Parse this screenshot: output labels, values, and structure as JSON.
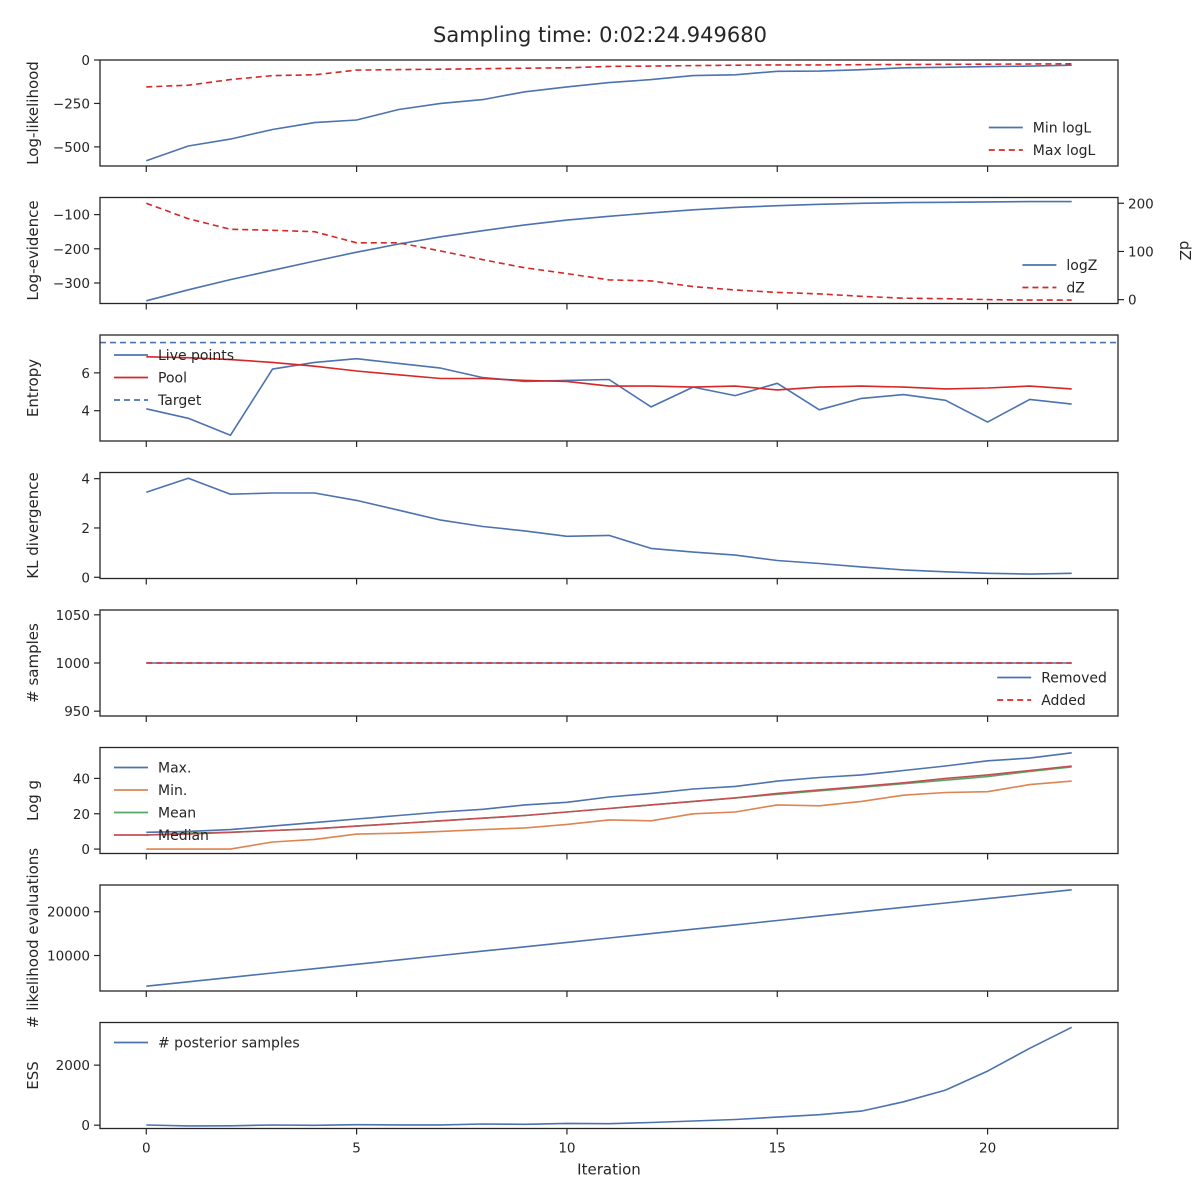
{
  "title": "Sampling time: 0:02:24.949680",
  "colors": {
    "blue": "#4c72b0",
    "red": "#d62728",
    "orange": "#dd8452",
    "green": "#55a868",
    "brick": "#c44e52",
    "axis": "#262626"
  },
  "chart_data": [
    {
      "type": "line",
      "ylabel": "Log-likelihood",
      "xlim": [
        -1.1,
        23.1
      ],
      "ylim": [
        -610,
        0
      ],
      "yticks": [
        {
          "v": 0,
          "label": "0"
        },
        {
          "v": -250,
          "label": "−250"
        },
        {
          "v": -500,
          "label": "−500"
        }
      ],
      "legend": "right",
      "series": [
        {
          "name": "Min logL",
          "color": "blue",
          "dash": false,
          "x": [
            0,
            1,
            2,
            3,
            4,
            5,
            6,
            7,
            8,
            9,
            10,
            11,
            12,
            13,
            14,
            15,
            16,
            17,
            18,
            19,
            20,
            21,
            22
          ],
          "values": [
            -580,
            -495,
            -455,
            -400,
            -360,
            -345,
            -285,
            -250,
            -228,
            -183,
            -155,
            -130,
            -113,
            -90,
            -85,
            -65,
            -64,
            -56,
            -45,
            -42,
            -38,
            -35,
            -30
          ]
        },
        {
          "name": "Max logL",
          "color": "red",
          "dash": true,
          "x": [
            0,
            1,
            2,
            3,
            4,
            5,
            6,
            7,
            8,
            9,
            10,
            11,
            12,
            13,
            14,
            15,
            16,
            17,
            18,
            19,
            20,
            21,
            22
          ],
          "values": [
            -155,
            -145,
            -113,
            -90,
            -85,
            -58,
            -55,
            -53,
            -50,
            -47,
            -45,
            -37,
            -35,
            -32,
            -30,
            -28,
            -28,
            -27,
            -26,
            -25,
            -24,
            -23,
            -22
          ]
        }
      ]
    },
    {
      "type": "line",
      "ylabel": "Log-evidence",
      "ylabel2": "dZ",
      "xlim": [
        -1.1,
        23.1
      ],
      "ylim": [
        -360,
        -50
      ],
      "yticks": [
        {
          "v": -100,
          "label": "−100"
        },
        {
          "v": -200,
          "label": "−200"
        },
        {
          "v": -300,
          "label": "−300"
        }
      ],
      "ylim2": [
        -8,
        212
      ],
      "yticks2": [
        {
          "v": 0,
          "label": "0"
        },
        {
          "v": 100,
          "label": "100"
        },
        {
          "v": 200,
          "label": "200"
        }
      ],
      "legend": "right",
      "series": [
        {
          "name": "logZ",
          "color": "blue",
          "dash": false,
          "axis": "left",
          "x": [
            0,
            1,
            2,
            3,
            4,
            5,
            6,
            7,
            8,
            9,
            10,
            11,
            12,
            13,
            14,
            15,
            16,
            17,
            18,
            19,
            20,
            21,
            22
          ],
          "values": [
            -352,
            -320,
            -290,
            -263,
            -236,
            -210,
            -186,
            -165,
            -147,
            -130,
            -116,
            -105,
            -95,
            -86,
            -79,
            -74,
            -70,
            -67,
            -65,
            -64,
            -63,
            -62,
            -62
          ]
        },
        {
          "name": "dZ",
          "color": "red",
          "dash": true,
          "axis": "right",
          "x": [
            0,
            1,
            2,
            3,
            4,
            5,
            6,
            7,
            8,
            9,
            10,
            11,
            12,
            13,
            14,
            15,
            16,
            17,
            18,
            19,
            20,
            21,
            22
          ],
          "values": [
            200,
            168,
            146,
            144,
            141,
            118,
            118,
            101,
            83,
            66,
            54,
            41,
            39,
            27,
            20,
            15,
            12,
            7,
            3,
            2,
            0,
            -1,
            -1
          ]
        }
      ]
    },
    {
      "type": "line",
      "ylabel": "Entropy",
      "xlim": [
        -1.1,
        23.1
      ],
      "ylim": [
        2.4,
        8.0
      ],
      "yticks": [
        {
          "v": 4,
          "label": "4"
        },
        {
          "v": 6,
          "label": "6"
        }
      ],
      "legend": "left",
      "series": [
        {
          "name": "Live points",
          "color": "blue",
          "dash": false,
          "x": [
            0,
            1,
            2,
            3,
            4,
            5,
            6,
            7,
            8,
            9,
            10,
            11,
            12,
            13,
            14,
            15,
            16,
            17,
            18,
            19,
            20,
            21,
            22
          ],
          "values": [
            4.1,
            3.6,
            2.7,
            6.2,
            6.55,
            6.75,
            6.5,
            6.25,
            5.75,
            5.55,
            5.6,
            5.65,
            4.2,
            5.25,
            4.8,
            5.45,
            4.05,
            4.65,
            4.85,
            4.55,
            3.4,
            4.6,
            4.35
          ]
        },
        {
          "name": "Pool",
          "color": "red",
          "dash": false,
          "x": [
            0,
            1,
            2,
            3,
            4,
            5,
            6,
            7,
            8,
            9,
            10,
            11,
            12,
            13,
            14,
            15,
            16,
            17,
            18,
            19,
            20,
            21,
            22
          ],
          "values": [
            6.85,
            6.8,
            6.7,
            6.55,
            6.35,
            6.1,
            5.9,
            5.7,
            5.7,
            5.6,
            5.55,
            5.3,
            5.3,
            5.25,
            5.3,
            5.1,
            5.25,
            5.3,
            5.25,
            5.15,
            5.2,
            5.3,
            5.15
          ]
        },
        {
          "name": "Target",
          "color": "blue",
          "dash": true,
          "hline": 7.6
        }
      ]
    },
    {
      "type": "line",
      "ylabel": "KL divergence",
      "xlim": [
        -1.1,
        23.1
      ],
      "ylim": [
        -0.05,
        4.25
      ],
      "yticks": [
        {
          "v": 0,
          "label": "0"
        },
        {
          "v": 2,
          "label": "2"
        },
        {
          "v": 4,
          "label": "4"
        }
      ],
      "legend": "none",
      "series": [
        {
          "name": "",
          "color": "blue",
          "dash": false,
          "x": [
            0,
            1,
            2,
            3,
            4,
            5,
            6,
            7,
            8,
            9,
            10,
            11,
            12,
            13,
            14,
            15,
            16,
            17,
            18,
            19,
            20,
            21,
            22
          ],
          "values": [
            3.45,
            4.02,
            3.37,
            3.42,
            3.42,
            3.12,
            2.72,
            2.32,
            2.06,
            1.88,
            1.66,
            1.7,
            1.17,
            1.02,
            0.9,
            0.68,
            0.56,
            0.42,
            0.3,
            0.22,
            0.16,
            0.13,
            0.16
          ]
        }
      ]
    },
    {
      "type": "line",
      "ylabel": "# samples",
      "xlim": [
        -1.1,
        23.1
      ],
      "ylim": [
        945,
        1055
      ],
      "yticks": [
        {
          "v": 1050,
          "label": "1050"
        },
        {
          "v": 1000,
          "label": "1000"
        },
        {
          "v": 950,
          "label": "950"
        }
      ],
      "legend": "right",
      "series": [
        {
          "name": "Removed",
          "color": "blue",
          "dash": false,
          "x": [
            0,
            1,
            2,
            3,
            4,
            5,
            6,
            7,
            8,
            9,
            10,
            11,
            12,
            13,
            14,
            15,
            16,
            17,
            18,
            19,
            20,
            21,
            22
          ],
          "values": [
            1000,
            1000,
            1000,
            1000,
            1000,
            1000,
            1000,
            1000,
            1000,
            1000,
            1000,
            1000,
            1000,
            1000,
            1000,
            1000,
            1000,
            1000,
            1000,
            1000,
            1000,
            1000,
            1000
          ]
        },
        {
          "name": "Added",
          "color": "red",
          "dash": true,
          "x": [
            0,
            1,
            2,
            3,
            4,
            5,
            6,
            7,
            8,
            9,
            10,
            11,
            12,
            13,
            14,
            15,
            16,
            17,
            18,
            19,
            20,
            21,
            22
          ],
          "values": [
            1000,
            1000,
            1000,
            1000,
            1000,
            1000,
            1000,
            1000,
            1000,
            1000,
            1000,
            1000,
            1000,
            1000,
            1000,
            1000,
            1000,
            1000,
            1000,
            1000,
            1000,
            1000,
            1000
          ]
        }
      ]
    },
    {
      "type": "line",
      "ylabel": "Log g",
      "xlim": [
        -1.1,
        23.1
      ],
      "ylim": [
        -2.5,
        57.5
      ],
      "yticks": [
        {
          "v": 0,
          "label": "0"
        },
        {
          "v": 20,
          "label": "20"
        },
        {
          "v": 40,
          "label": "40"
        }
      ],
      "legend": "left",
      "series": [
        {
          "name": "Max.",
          "color": "blue",
          "dash": false,
          "x": [
            0,
            1,
            2,
            3,
            4,
            5,
            6,
            7,
            8,
            9,
            10,
            11,
            12,
            13,
            14,
            15,
            16,
            17,
            18,
            19,
            20,
            21,
            22
          ],
          "values": [
            9.5,
            10,
            11,
            13,
            15,
            17,
            19,
            21,
            22.5,
            25,
            26.5,
            29.5,
            31.5,
            34,
            35.5,
            38.5,
            40.5,
            42,
            44.5,
            47,
            50,
            51.5,
            54.5
          ]
        },
        {
          "name": "Min.",
          "color": "orange",
          "dash": false,
          "x": [
            0,
            1,
            2,
            3,
            4,
            5,
            6,
            7,
            8,
            9,
            10,
            11,
            12,
            13,
            14,
            15,
            16,
            17,
            18,
            19,
            20,
            21,
            22
          ],
          "values": [
            0,
            0,
            0,
            4,
            5.5,
            8.5,
            9,
            10,
            11,
            12,
            14,
            16.5,
            16,
            20,
            21,
            25,
            24.5,
            27,
            30.5,
            32,
            32.5,
            36.5,
            38.5
          ]
        },
        {
          "name": "Mean",
          "color": "green",
          "dash": false,
          "x": [
            0,
            1,
            2,
            3,
            4,
            5,
            6,
            7,
            8,
            9,
            10,
            11,
            12,
            13,
            14,
            15,
            16,
            17,
            18,
            19,
            20,
            21,
            22
          ],
          "values": [
            8,
            9,
            9.5,
            10.5,
            11.5,
            13,
            14.5,
            16,
            17.5,
            19,
            21,
            23,
            25,
            27,
            29,
            31,
            33,
            35,
            37,
            39,
            41,
            44,
            46.5
          ]
        },
        {
          "name": "Median",
          "color": "brick",
          "dash": false,
          "x": [
            0,
            1,
            2,
            3,
            4,
            5,
            6,
            7,
            8,
            9,
            10,
            11,
            12,
            13,
            14,
            15,
            16,
            17,
            18,
            19,
            20,
            21,
            22
          ],
          "values": [
            8,
            8.5,
            9.5,
            10.5,
            11.5,
            13,
            14.5,
            16,
            17.5,
            19,
            21,
            23,
            25,
            27,
            29,
            31.5,
            33.5,
            35.5,
            37.5,
            40,
            42,
            44.5,
            47
          ]
        }
      ]
    },
    {
      "type": "line",
      "ylabel": "# likelihood evaluations",
      "xlim": [
        -1.1,
        23.1
      ],
      "ylim": [
        1900,
        26100
      ],
      "yticks": [
        {
          "v": 20000,
          "label": "20000"
        },
        {
          "v": 10000,
          "label": "10000"
        }
      ],
      "legend": "none",
      "series": [
        {
          "name": "",
          "color": "blue",
          "dash": false,
          "x": [
            0,
            1,
            2,
            3,
            4,
            5,
            6,
            7,
            8,
            9,
            10,
            11,
            12,
            13,
            14,
            15,
            16,
            17,
            18,
            19,
            20,
            21,
            22
          ],
          "values": [
            3000,
            4000,
            5000,
            6000,
            7000,
            8000,
            9000,
            10000,
            11000,
            12000,
            13000,
            14000,
            15000,
            16000,
            17000,
            18000,
            19000,
            20000,
            21000,
            22000,
            23000,
            24000,
            25000
          ]
        }
      ]
    },
    {
      "type": "line",
      "ylabel": "ESS",
      "xlabel": "Iteration",
      "xlim": [
        -1.1,
        23.1
      ],
      "ylim": [
        -110,
        3420
      ],
      "yticks": [
        {
          "v": 0,
          "label": "0"
        },
        {
          "v": 2000,
          "label": "2000"
        }
      ],
      "xticks": [
        {
          "v": 0,
          "label": "0"
        },
        {
          "v": 5,
          "label": "5"
        },
        {
          "v": 10,
          "label": "10"
        },
        {
          "v": 15,
          "label": "15"
        },
        {
          "v": 20,
          "label": "20"
        }
      ],
      "legend": "left",
      "series": [
        {
          "name": "# posterior samples",
          "color": "blue",
          "dash": false,
          "x": [
            0,
            1,
            2,
            3,
            4,
            5,
            6,
            7,
            8,
            9,
            10,
            11,
            12,
            13,
            14,
            15,
            16,
            17,
            18,
            19,
            20,
            21,
            22
          ],
          "values": [
            5,
            -25,
            -20,
            5,
            -5,
            15,
            10,
            10,
            40,
            30,
            60,
            50,
            90,
            140,
            190,
            270,
            350,
            470,
            780,
            1170,
            1800,
            2560,
            3260
          ]
        }
      ]
    }
  ]
}
